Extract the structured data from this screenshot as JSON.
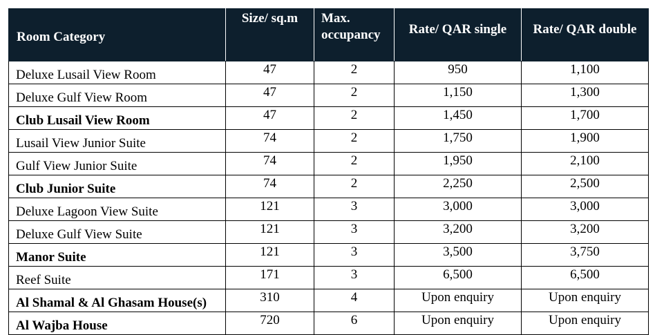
{
  "table": {
    "headers": {
      "category": "Room Category",
      "size": "Size/ sq.m",
      "occupancy_line1": "Max.",
      "occupancy_line2": "occupancy",
      "rate_single": "Rate/ QAR single",
      "rate_double": "Rate/ QAR double"
    },
    "rows": [
      {
        "category": "Deluxe Lusail View Room",
        "bold": false,
        "size": "47",
        "occupancy": "2",
        "single": "950",
        "double": "1,100"
      },
      {
        "category": "Deluxe Gulf View Room",
        "bold": false,
        "size": "47",
        "occupancy": "2",
        "single": "1,150",
        "double": "1,300"
      },
      {
        "category": "Club Lusail View Room",
        "bold": true,
        "size": "47",
        "occupancy": "2",
        "single": "1,450",
        "double": "1,700"
      },
      {
        "category": "Lusail View Junior Suite",
        "bold": false,
        "size": "74",
        "occupancy": "2",
        "single": "1,750",
        "double": "1,900"
      },
      {
        "category": "Gulf View Junior Suite",
        "bold": false,
        "size": "74",
        "occupancy": "2",
        "single": "1,950",
        "double": "2,100"
      },
      {
        "category": "Club Junior Suite",
        "bold": true,
        "size": "74",
        "occupancy": "2",
        "single": "2,250",
        "double": "2,500"
      },
      {
        "category": "Deluxe Lagoon View Suite",
        "bold": false,
        "size": "121",
        "occupancy": "3",
        "single": "3,000",
        "double": "3,000"
      },
      {
        "category": "Deluxe Gulf View Suite",
        "bold": false,
        "size": "121",
        "occupancy": "3",
        "single": "3,200",
        "double": "3,200"
      },
      {
        "category": "Manor Suite",
        "bold": true,
        "size": "121",
        "occupancy": "3",
        "single": "3,500",
        "double": "3,750"
      },
      {
        "category": "Reef Suite",
        "bold": false,
        "size": "171",
        "occupancy": "3",
        "single": "6,500",
        "double": "6,500"
      },
      {
        "category": "Al Shamal & Al Ghasam House(s)",
        "bold": true,
        "size": "310",
        "occupancy": "4",
        "single": "Upon enquiry",
        "double": "Upon enquiry"
      },
      {
        "category": "Al Wajba House",
        "bold": true,
        "size": "720",
        "occupancy": "6",
        "single": "Upon enquiry",
        "double": "Upon enquiry"
      }
    ]
  },
  "colors": {
    "header_background": "#0d1f2d",
    "header_text": "#ffffff",
    "border": "#000000"
  }
}
